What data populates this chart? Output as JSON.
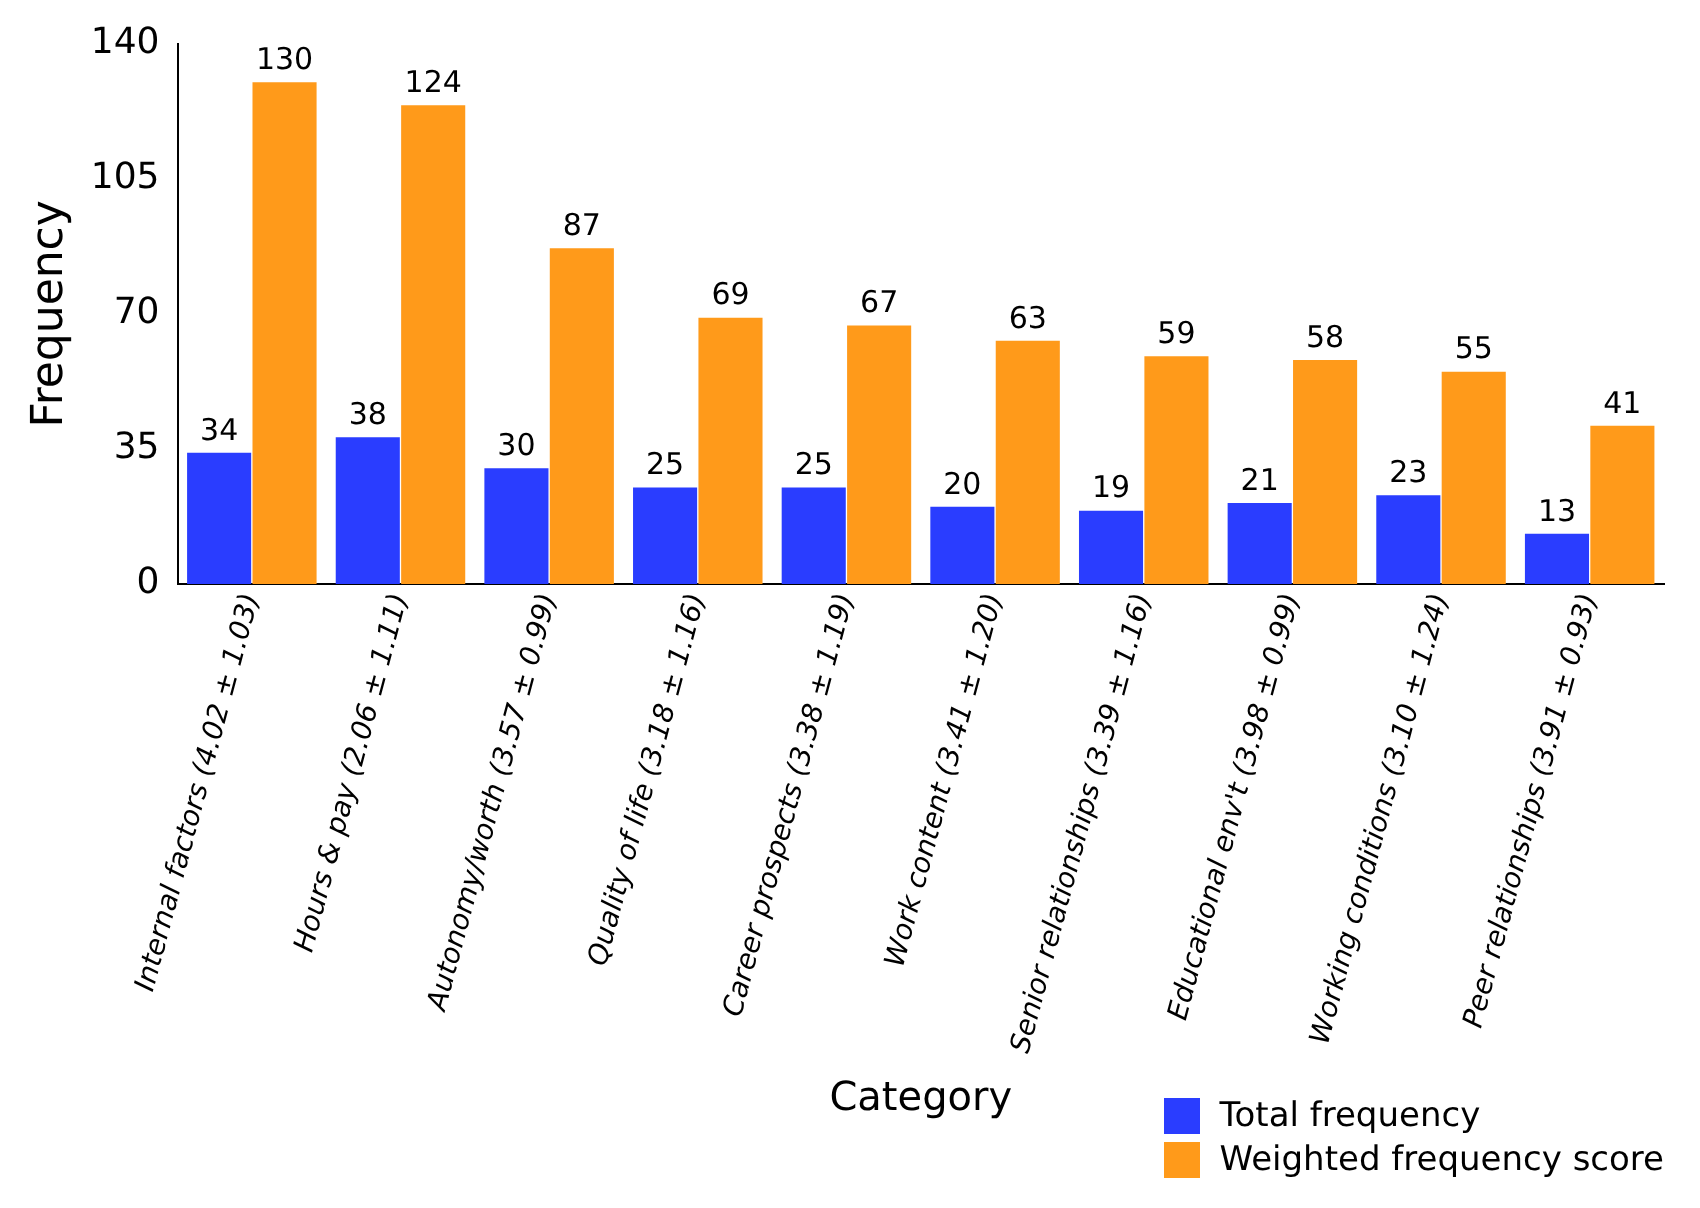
{
  "chart_data": {
    "type": "bar",
    "xlabel": "Category",
    "ylabel": "Frequency",
    "categories": [
      "Internal factors (4.02 ± 1.03)",
      "Hours & pay (2.06 ± 1.11)",
      "Autonomy/worth (3.57 ± 0.99)",
      "Quality of life (3.18 ± 1.16)",
      "Career prospects (3.38 ± 1.19)",
      "Work content (3.41 ± 1.20)",
      "Senior relationships (3.39 ± 1.16)",
      "Educational env't (3.98 ± 0.99)",
      "Working conditions (3.10 ± 1.24)",
      "Peer relationships (3.91 ± 0.93)"
    ],
    "series": [
      {
        "name": "Total frequency",
        "color": "#2a3dff",
        "values": [
          34,
          38,
          30,
          25,
          25,
          20,
          19,
          21,
          23,
          13
        ]
      },
      {
        "name": "Weighted frequency score",
        "color": "#ff9a1a",
        "values": [
          130,
          124,
          87,
          69,
          67,
          63,
          59,
          58,
          55,
          41
        ]
      }
    ],
    "ylim": [
      0,
      140
    ],
    "yticks": [
      0,
      35,
      70,
      105,
      140
    ],
    "grid": false,
    "legend": "bottom right",
    "data_labels": true
  }
}
